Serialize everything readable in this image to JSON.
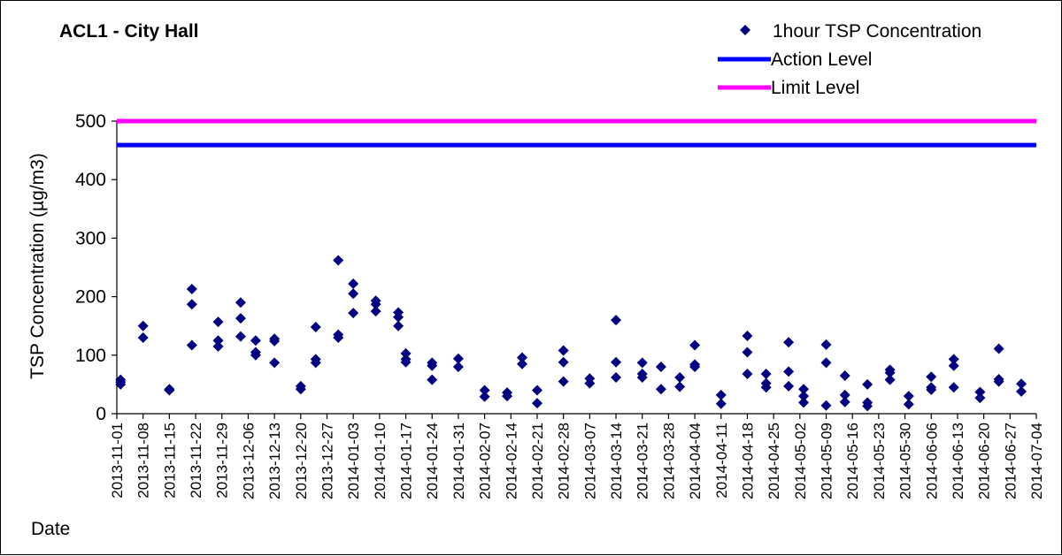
{
  "chart_data": {
    "type": "scatter",
    "title": "ACL1 - City Hall",
    "xlabel": "Date",
    "ylabel": "TSP Concentration (µg/m3)",
    "ylim": [
      0,
      500
    ],
    "yticks": [
      "0",
      "100",
      "200",
      "300",
      "400",
      "500"
    ],
    "xlim": [
      "2013-11-01",
      "2014-07-04"
    ],
    "xticks": [
      "2013-11-01",
      "2013-11-08",
      "2013-11-15",
      "2013-11-22",
      "2013-11-29",
      "2013-12-06",
      "2013-12-13",
      "2013-12-20",
      "2013-12-27",
      "2014-01-03",
      "2014-01-10",
      "2014-01-17",
      "2014-01-24",
      "2014-01-31",
      "2014-02-07",
      "2014-02-14",
      "2014-02-21",
      "2014-02-28",
      "2014-03-07",
      "2014-03-14",
      "2014-03-21",
      "2014-03-28",
      "2014-04-04",
      "2014-04-11",
      "2014-04-18",
      "2014-04-25",
      "2014-05-02",
      "2014-05-09",
      "2014-05-16",
      "2014-05-23",
      "2014-05-30",
      "2014-06-06",
      "2014-06-13",
      "2014-06-20",
      "2014-06-27",
      "2014-07-04"
    ],
    "grid": false,
    "legend_position": "top-right",
    "series": [
      {
        "name": "1hour TSP Concentration",
        "kind": "scatter",
        "marker": "diamond",
        "color": "#000080",
        "points": [
          [
            "2013-11-02",
            58
          ],
          [
            "2013-11-02",
            54
          ],
          [
            "2013-11-02",
            50
          ],
          [
            "2013-11-08",
            150
          ],
          [
            "2013-11-08",
            130
          ],
          [
            "2013-11-15",
            42
          ],
          [
            "2013-11-15",
            40
          ],
          [
            "2013-11-21",
            213
          ],
          [
            "2013-11-21",
            187
          ],
          [
            "2013-11-21",
            117
          ],
          [
            "2013-11-28",
            157
          ],
          [
            "2013-11-28",
            125
          ],
          [
            "2013-11-28",
            115
          ],
          [
            "2013-12-04",
            190
          ],
          [
            "2013-12-04",
            163
          ],
          [
            "2013-12-04",
            132
          ],
          [
            "2013-12-08",
            125
          ],
          [
            "2013-12-08",
            105
          ],
          [
            "2013-12-08",
            100
          ],
          [
            "2013-12-13",
            128
          ],
          [
            "2013-12-13",
            124
          ],
          [
            "2013-12-13",
            87
          ],
          [
            "2013-12-20",
            47
          ],
          [
            "2013-12-20",
            42
          ],
          [
            "2013-12-24",
            148
          ],
          [
            "2013-12-24",
            93
          ],
          [
            "2013-12-24",
            87
          ],
          [
            "2013-12-30",
            262
          ],
          [
            "2013-12-30",
            135
          ],
          [
            "2013-12-30",
            130
          ],
          [
            "2014-01-03",
            222
          ],
          [
            "2014-01-03",
            205
          ],
          [
            "2014-01-03",
            172
          ],
          [
            "2014-01-09",
            193
          ],
          [
            "2014-01-09",
            187
          ],
          [
            "2014-01-09",
            175
          ],
          [
            "2014-01-15",
            173
          ],
          [
            "2014-01-15",
            165
          ],
          [
            "2014-01-15",
            150
          ],
          [
            "2014-01-17",
            103
          ],
          [
            "2014-01-17",
            93
          ],
          [
            "2014-01-17",
            88
          ],
          [
            "2014-01-24",
            87
          ],
          [
            "2014-01-24",
            82
          ],
          [
            "2014-01-24",
            58
          ],
          [
            "2014-01-31",
            94
          ],
          [
            "2014-01-31",
            80
          ],
          [
            "2014-02-07",
            40
          ],
          [
            "2014-02-07",
            29
          ],
          [
            "2014-02-13",
            36
          ],
          [
            "2014-02-13",
            30
          ],
          [
            "2014-02-17",
            96
          ],
          [
            "2014-02-17",
            85
          ],
          [
            "2014-02-21",
            40
          ],
          [
            "2014-02-21",
            18
          ],
          [
            "2014-02-28",
            108
          ],
          [
            "2014-02-28",
            88
          ],
          [
            "2014-02-28",
            55
          ],
          [
            "2014-03-07",
            60
          ],
          [
            "2014-03-07",
            52
          ],
          [
            "2014-03-14",
            160
          ],
          [
            "2014-03-14",
            88
          ],
          [
            "2014-03-14",
            62
          ],
          [
            "2014-03-21",
            87
          ],
          [
            "2014-03-21",
            68
          ],
          [
            "2014-03-21",
            62
          ],
          [
            "2014-03-26",
            80
          ],
          [
            "2014-03-26",
            42
          ],
          [
            "2014-03-31",
            62
          ],
          [
            "2014-03-31",
            46
          ],
          [
            "2014-04-04",
            117
          ],
          [
            "2014-04-04",
            84
          ],
          [
            "2014-04-04",
            80
          ],
          [
            "2014-04-11",
            32
          ],
          [
            "2014-04-11",
            17
          ],
          [
            "2014-04-18",
            133
          ],
          [
            "2014-04-18",
            105
          ],
          [
            "2014-04-18",
            68
          ],
          [
            "2014-04-23",
            68
          ],
          [
            "2014-04-23",
            52
          ],
          [
            "2014-04-23",
            45
          ],
          [
            "2014-04-29",
            122
          ],
          [
            "2014-04-29",
            72
          ],
          [
            "2014-04-29",
            47
          ],
          [
            "2014-05-03",
            42
          ],
          [
            "2014-05-03",
            30
          ],
          [
            "2014-05-03",
            19
          ],
          [
            "2014-05-09",
            118
          ],
          [
            "2014-05-09",
            87
          ],
          [
            "2014-05-09",
            14
          ],
          [
            "2014-05-14",
            65
          ],
          [
            "2014-05-14",
            32
          ],
          [
            "2014-05-14",
            20
          ],
          [
            "2014-05-20",
            50
          ],
          [
            "2014-05-20",
            19
          ],
          [
            "2014-05-20",
            13
          ],
          [
            "2014-05-26",
            75
          ],
          [
            "2014-05-26",
            70
          ],
          [
            "2014-05-26",
            58
          ],
          [
            "2014-05-31",
            30
          ],
          [
            "2014-05-31",
            16
          ],
          [
            "2014-06-06",
            63
          ],
          [
            "2014-06-06",
            45
          ],
          [
            "2014-06-06",
            41
          ],
          [
            "2014-06-12",
            93
          ],
          [
            "2014-06-12",
            82
          ],
          [
            "2014-06-12",
            45
          ],
          [
            "2014-06-19",
            37
          ],
          [
            "2014-06-19",
            27
          ],
          [
            "2014-06-24",
            111
          ],
          [
            "2014-06-24",
            59
          ],
          [
            "2014-06-24",
            55
          ],
          [
            "2014-06-30",
            51
          ],
          [
            "2014-06-30",
            38
          ]
        ]
      },
      {
        "name": "Action Level",
        "kind": "line",
        "color": "#0000FF",
        "x": [
          "2013-11-01",
          "2014-07-04"
        ],
        "values": [
          459,
          459
        ]
      },
      {
        "name": "Limit Level",
        "kind": "line",
        "color": "#FF00FF",
        "x": [
          "2013-11-01",
          "2014-07-04"
        ],
        "values": [
          500,
          500
        ]
      }
    ]
  }
}
